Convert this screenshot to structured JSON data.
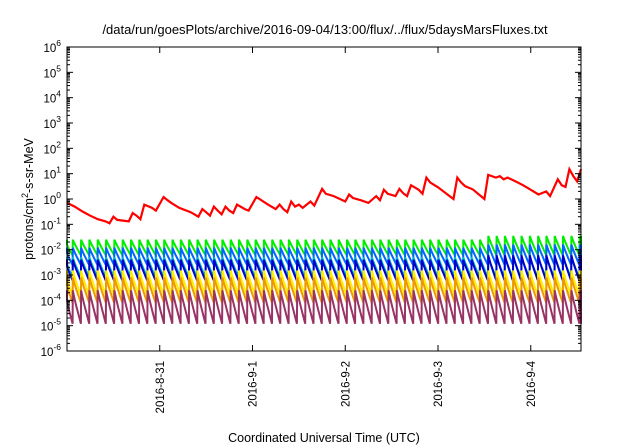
{
  "chart_data": {
    "type": "line",
    "title": "/data/run/goesPlots/archive/2016-09-04/13:00/flux/../flux/5daysMarsFluxes.txt",
    "xlabel": "Coordinated Universal Time (UTC)",
    "ylabel": "protons/cm²-s-sr-MeV",
    "ylabel_parts": {
      "pre": "protons/cm",
      "sup": "2",
      "post": "-s-sr-MeV"
    },
    "yscale": "log",
    "ylim": [
      1e-06,
      1000000.0
    ],
    "y_ticks": [
      {
        "base": "10",
        "exp": "-6",
        "value": 1e-06
      },
      {
        "base": "10",
        "exp": "-5",
        "value": 1e-05
      },
      {
        "base": "10",
        "exp": "-4",
        "value": 0.0001
      },
      {
        "base": "10",
        "exp": "-3",
        "value": 0.001
      },
      {
        "base": "10",
        "exp": "-2",
        "value": 0.01
      },
      {
        "base": "10",
        "exp": "-1",
        "value": 0.1
      },
      {
        "base": "10",
        "exp": "0",
        "value": 1
      },
      {
        "base": "10",
        "exp": "1",
        "value": 10
      },
      {
        "base": "10",
        "exp": "2",
        "value": 100
      },
      {
        "base": "10",
        "exp": "3",
        "value": 1000
      },
      {
        "base": "10",
        "exp": "4",
        "value": 10000
      },
      {
        "base": "10",
        "exp": "5",
        "value": 100000
      },
      {
        "base": "10",
        "exp": "6",
        "value": 1000000
      }
    ],
    "xlim": [
      "2016-08-30 00:00",
      "2016-09-04 13:00"
    ],
    "x_ticks": [
      {
        "label": "2016-8-31",
        "value": "2016-08-31 00:00"
      },
      {
        "label": "2016-9-1",
        "value": "2016-09-01 00:00"
      },
      {
        "label": "2016-9-2",
        "value": "2016-09-02 00:00"
      },
      {
        "label": "2016-9-3",
        "value": "2016-09-03 00:00"
      },
      {
        "label": "2016-9-4",
        "value": "2016-09-04 00:00"
      }
    ],
    "grid": false,
    "legend": "none",
    "red_series": {
      "color": "#ff0000",
      "x": [
        "2016-08-30 00:00",
        "2016-08-30 02:00",
        "2016-08-30 04:00",
        "2016-08-30 06:00",
        "2016-08-30 08:00",
        "2016-08-30 10:00",
        "2016-08-30 11:00",
        "2016-08-30 12:00",
        "2016-08-30 13:00",
        "2016-08-30 16:00",
        "2016-08-30 17:00",
        "2016-08-30 18:00",
        "2016-08-30 19:00",
        "2016-08-30 20:00",
        "2016-08-30 22:00",
        "2016-08-30 23:00",
        "2016-08-31 01:00",
        "2016-08-31 02:00",
        "2016-08-31 03:00",
        "2016-08-31 05:00",
        "2016-08-31 08:00",
        "2016-08-31 10:00",
        "2016-08-31 11:00",
        "2016-08-31 12:00",
        "2016-08-31 13:00",
        "2016-08-31 14:00",
        "2016-08-31 15:00",
        "2016-08-31 16:00",
        "2016-08-31 17:00",
        "2016-08-31 18:00",
        "2016-08-31 19:00",
        "2016-08-31 20:00",
        "2016-08-31 22:00",
        "2016-08-31 23:00",
        "2016-09-01 01:00",
        "2016-09-01 04:00",
        "2016-09-01 06:00",
        "2016-09-01 07:00",
        "2016-09-01 08:00",
        "2016-09-01 09:00",
        "2016-09-01 10:00",
        "2016-09-01 11:00",
        "2016-09-01 12:00",
        "2016-09-01 13:00",
        "2016-09-01 15:00",
        "2016-09-01 16:00",
        "2016-09-01 18:00",
        "2016-09-01 19:00",
        "2016-09-01 21:00",
        "2016-09-02 00:00",
        "2016-09-02 01:00",
        "2016-09-02 02:00",
        "2016-09-02 04:00",
        "2016-09-02 06:00",
        "2016-09-02 08:00",
        "2016-09-02 09:00",
        "2016-09-02 10:00",
        "2016-09-02 11:00",
        "2016-09-02 13:00",
        "2016-09-02 14:00",
        "2016-09-02 15:00",
        "2016-09-02 16:00",
        "2016-09-02 17:00",
        "2016-09-02 19:00",
        "2016-09-02 20:00",
        "2016-09-02 21:00",
        "2016-09-02 22:00",
        "2016-09-03 00:00",
        "2016-09-03 03:00",
        "2016-09-03 04:00",
        "2016-09-03 05:00",
        "2016-09-03 06:00",
        "2016-09-03 07:00",
        "2016-09-03 09:00",
        "2016-09-03 12:00",
        "2016-09-03 13:00",
        "2016-09-03 15:00",
        "2016-09-03 16:00",
        "2016-09-03 17:00",
        "2016-09-03 18:00",
        "2016-09-03 20:00",
        "2016-09-03 22:00",
        "2016-09-04 00:00",
        "2016-09-04 02:00",
        "2016-09-04 04:00",
        "2016-09-04 05:00",
        "2016-09-04 07:00",
        "2016-09-04 08:00",
        "2016-09-04 09:00",
        "2016-09-04 10:00",
        "2016-09-04 11:00",
        "2016-09-04 12:00",
        "2016-09-04 13:00"
      ],
      "y": [
        0.7,
        0.5,
        0.32,
        0.22,
        0.16,
        0.13,
        0.11,
        0.2,
        0.15,
        0.13,
        0.28,
        0.22,
        0.16,
        0.6,
        0.45,
        0.35,
        1.2,
        0.9,
        0.7,
        0.45,
        0.3,
        0.2,
        0.4,
        0.3,
        0.22,
        0.5,
        0.35,
        0.25,
        0.5,
        0.35,
        0.28,
        0.6,
        0.4,
        0.35,
        1.2,
        0.6,
        0.4,
        0.6,
        0.4,
        0.3,
        0.8,
        0.5,
        0.6,
        0.45,
        0.8,
        0.55,
        2.5,
        1.6,
        1.3,
        0.8,
        1.5,
        1.1,
        0.9,
        0.7,
        1.3,
        0.9,
        2.3,
        1.6,
        1.3,
        2.5,
        1.7,
        1.3,
        3.5,
        2.3,
        1.6,
        7.0,
        4.5,
        2.9,
        1.3,
        1.0,
        7.0,
        4.5,
        3.2,
        2.4,
        1.0,
        9.0,
        7.0,
        8.0,
        6.0,
        7.0,
        5.0,
        3.5,
        2.3,
        1.5,
        2.0,
        1.3,
        6.0,
        3.5,
        3.0,
        15.0,
        8.0,
        5.0,
        15.0
      ]
    },
    "sawtooth_series": [
      {
        "color": "#00ee00",
        "peak": 0.025,
        "trough": 0.006,
        "peak_late": 0.035
      },
      {
        "color": "#0066ff",
        "peak": 0.012,
        "trough": 0.0025,
        "peak_late": 0.016
      },
      {
        "color": "#00bbcc",
        "peak": 0.005,
        "trough": 0.0008,
        "peak_late": 0.005
      },
      {
        "color": "#0000cc",
        "peak": 0.004,
        "trough": 0.0006,
        "peak_late": 0.006
      },
      {
        "color": "#ffee00",
        "peak": 0.0015,
        "trough": 0.00015,
        "peak_late": 0.0015
      },
      {
        "color": "#ee9900",
        "peak": 0.0008,
        "trough": 8e-05,
        "peak_late": 0.0008
      },
      {
        "color": "#993366",
        "peak": 0.00025,
        "trough": 1.2e-05,
        "peak_late": 0.00025
      }
    ],
    "sawtooth_period_hours": 2.15,
    "sawtooth_change_at": "2016-09-03 12:00"
  }
}
